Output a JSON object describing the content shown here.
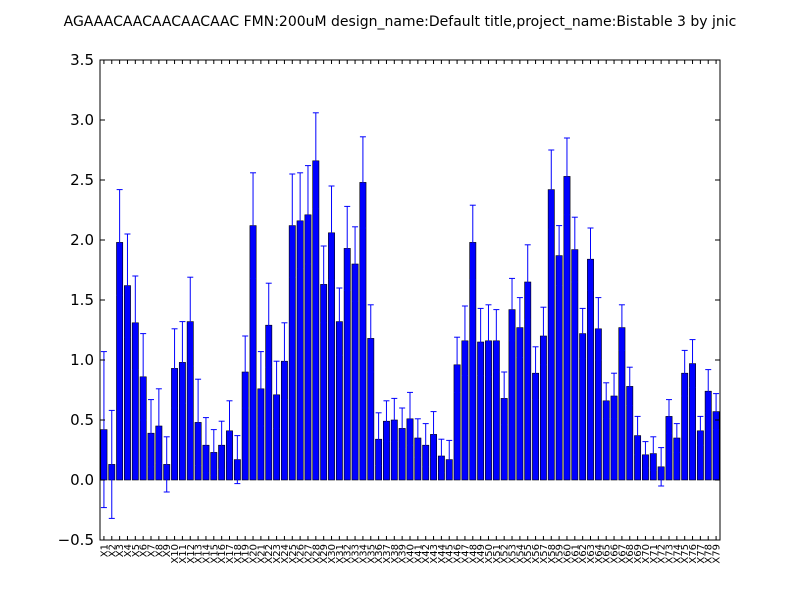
{
  "chart_data": {
    "type": "bar",
    "title": "AGAAACAACAACAACAAC  FMN:200uM  design_name:Default title,project_name:Bistable 3 by jnic",
    "xlabel": "",
    "ylabel": "",
    "ylim": [
      -0.5,
      3.5
    ],
    "yticks": [
      "−0.5",
      "0.0",
      "0.5",
      "1.0",
      "1.5",
      "2.0",
      "2.5",
      "3.0",
      "3.5"
    ],
    "grid": false,
    "colors": {
      "bar": "#0000ff",
      "bar_edge": "#000000",
      "error": "#0000ff",
      "axes": "#000000"
    },
    "categories": [
      "X1",
      "X2",
      "X3",
      "X4",
      "X5",
      "X6",
      "X7",
      "X8",
      "X9",
      "X10",
      "X11",
      "X12",
      "X13",
      "X14",
      "X15",
      "X16",
      "X17",
      "X18",
      "X19",
      "X20",
      "X21",
      "X22",
      "X23",
      "X24",
      "X25",
      "X26",
      "X27",
      "X28",
      "X29",
      "X30",
      "X31",
      "X32",
      "X33",
      "X34",
      "X35",
      "X36",
      "X37",
      "X38",
      "X39",
      "X40",
      "X41",
      "X42",
      "X43",
      "X44",
      "X45",
      "X46",
      "X47",
      "X48",
      "X49",
      "X50",
      "X51",
      "X52",
      "X53",
      "X54",
      "X55",
      "X56",
      "X57",
      "X58",
      "X59",
      "X60",
      "X61",
      "X62",
      "X63",
      "X64",
      "X65",
      "X66",
      "X67",
      "X68",
      "X69",
      "X70",
      "X71",
      "X72",
      "X73",
      "X74",
      "X75",
      "X76",
      "X77",
      "X78",
      "X79"
    ],
    "values": [
      0.42,
      0.13,
      1.98,
      1.62,
      1.31,
      0.86,
      0.39,
      0.45,
      0.13,
      0.93,
      0.98,
      1.32,
      0.48,
      0.29,
      0.23,
      0.29,
      0.41,
      0.17,
      0.9,
      2.12,
      0.76,
      1.29,
      0.71,
      0.99,
      2.12,
      2.16,
      2.21,
      2.66,
      1.63,
      2.06,
      1.32,
      1.93,
      1.8,
      2.48,
      1.18,
      0.34,
      0.49,
      0.5,
      0.43,
      0.51,
      0.35,
      0.29,
      0.38,
      0.2,
      0.17,
      0.96,
      1.16,
      1.98,
      1.15,
      1.16,
      1.16,
      0.68,
      1.42,
      1.27,
      1.65,
      0.89,
      1.2,
      2.42,
      1.87,
      2.53,
      1.92,
      1.22,
      1.84,
      1.26,
      0.66,
      0.7,
      1.27,
      0.78,
      0.37,
      0.21,
      0.22,
      0.11,
      0.53,
      0.35,
      0.89,
      0.97,
      0.41,
      0.74,
      0.57
    ],
    "errors": [
      0.65,
      0.45,
      0.44,
      0.43,
      0.39,
      0.36,
      0.28,
      0.31,
      0.23,
      0.33,
      0.34,
      0.37,
      0.36,
      0.23,
      0.19,
      0.2,
      0.25,
      0.2,
      0.3,
      0.44,
      0.31,
      0.35,
      0.28,
      0.32,
      0.43,
      0.4,
      0.41,
      0.4,
      0.32,
      0.39,
      0.28,
      0.35,
      0.31,
      0.38,
      0.28,
      0.22,
      0.17,
      0.18,
      0.17,
      0.22,
      0.16,
      0.18,
      0.19,
      0.14,
      0.16,
      0.23,
      0.29,
      0.31,
      0.28,
      0.3,
      0.26,
      0.22,
      0.26,
      0.25,
      0.31,
      0.22,
      0.24,
      0.33,
      0.25,
      0.32,
      0.27,
      0.21,
      0.26,
      0.26,
      0.15,
      0.19,
      0.19,
      0.16,
      0.16,
      0.11,
      0.14,
      0.16,
      0.14,
      0.12,
      0.19,
      0.2,
      0.12,
      0.18,
      0.15
    ]
  }
}
